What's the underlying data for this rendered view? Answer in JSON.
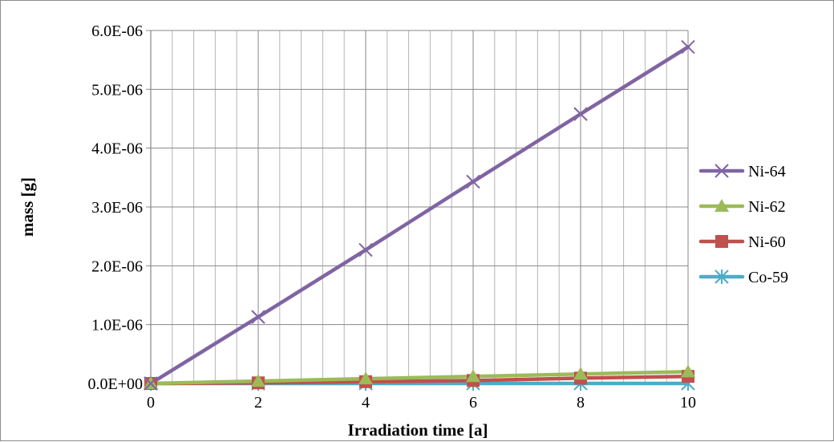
{
  "chart_data": {
    "type": "line",
    "title": "",
    "xlabel": "Irradiation time [a]",
    "ylabel": "mass [g]",
    "xlim": [
      0,
      10
    ],
    "ylim": [
      0,
      6e-06
    ],
    "x_ticks": [
      0,
      2,
      4,
      6,
      8,
      10
    ],
    "x_tick_labels": [
      "0",
      "2",
      "4",
      "6",
      "8",
      "10"
    ],
    "y_ticks": [
      0,
      1e-06,
      2e-06,
      3e-06,
      4e-06,
      5e-06,
      6e-06
    ],
    "y_tick_labels": [
      "0.0E+00",
      "1.0E-06",
      "2.0E-06",
      "3.0E-06",
      "4.0E-06",
      "5.0E-06",
      "6.0E-06"
    ],
    "grid": true,
    "minor_x_step": 0.4,
    "legend_position": "right",
    "series": [
      {
        "name": "Ni-64",
        "color": "#8064a2",
        "marker": "x",
        "x": [
          0,
          2,
          4,
          6,
          8,
          10
        ],
        "y": [
          0,
          1.13e-06,
          2.27e-06,
          3.43e-06,
          4.58e-06,
          5.72e-06
        ]
      },
      {
        "name": "Ni-62",
        "color": "#9bbb59",
        "marker": "triangle",
        "x": [
          0,
          2,
          4,
          6,
          8,
          10
        ],
        "y": [
          0,
          4e-08,
          8e-08,
          1.2e-07,
          1.6e-07,
          2e-07
        ]
      },
      {
        "name": "Ni-60",
        "color": "#c0504d",
        "marker": "square",
        "x": [
          0,
          2,
          4,
          6,
          8,
          10
        ],
        "y": [
          0,
          1e-08,
          3e-08,
          5e-08,
          9e-08,
          1.2e-07
        ]
      },
      {
        "name": "Co-59",
        "color": "#4bacc6",
        "marker": "asterisk",
        "x": [
          0,
          2,
          4,
          6,
          8,
          10
        ],
        "y": [
          0,
          0,
          0,
          0,
          0,
          0
        ]
      }
    ]
  }
}
